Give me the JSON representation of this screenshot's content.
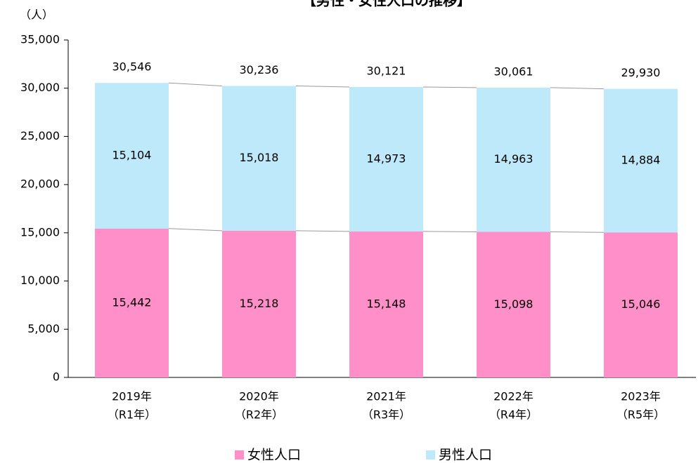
{
  "chart_data": {
    "type": "stacked_bar",
    "title": "【男性・女性人口の推移】",
    "y_unit": "（人）",
    "categories": [
      "2019年",
      "2020年",
      "2021年",
      "2022年",
      "2023年"
    ],
    "category_sublabels": [
      "（R1年）",
      "（R2年）",
      "（R3年）",
      "（R4年）",
      "（R5年）"
    ],
    "series": [
      {
        "name": "女性人口",
        "color": "#ff8fc8",
        "values": [
          15442,
          15218,
          15148,
          15098,
          15046
        ],
        "value_labels": [
          "15,442",
          "15,218",
          "15,148",
          "15,098",
          "15,046"
        ]
      },
      {
        "name": "男性人口",
        "color": "#bde9fb",
        "values": [
          15104,
          15018,
          14973,
          14963,
          14884
        ],
        "value_labels": [
          "15,104",
          "15,018",
          "14,973",
          "14,963",
          "14,884"
        ]
      }
    ],
    "totals": {
      "values": [
        30546,
        30236,
        30121,
        30061,
        29930
      ],
      "value_labels": [
        "30,546",
        "30,236",
        "30,121",
        "30,061",
        "29,930"
      ]
    },
    "ylim": [
      0,
      35000
    ],
    "yticks": [
      0,
      {
        "value": 5000,
        "label": "5,000"
      },
      {
        "value": 10000,
        "label": "10,000"
      },
      {
        "value": 15000,
        "label": "15,000"
      },
      {
        "value": 20000,
        "label": "20,000"
      },
      {
        "value": 25000,
        "label": "25,000"
      },
      {
        "value": 30000,
        "label": "30,000"
      },
      {
        "value": 35000,
        "label": "35,000"
      }
    ],
    "series_lines": true
  }
}
